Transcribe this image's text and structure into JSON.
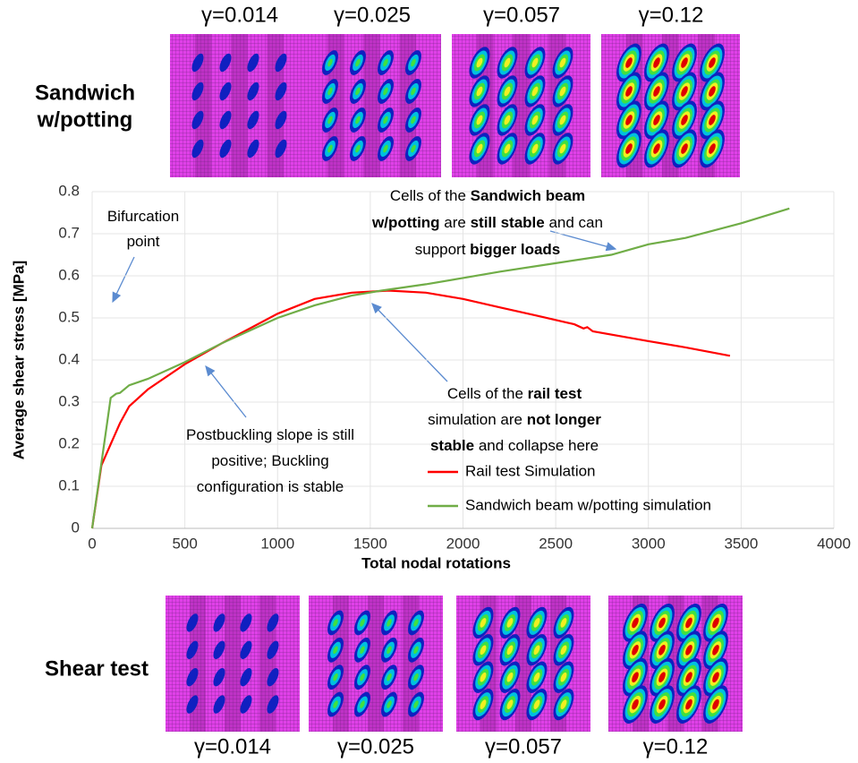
{
  "chart_data": {
    "type": "line",
    "xlabel": "Total nodal rotations",
    "ylabel": "Average shear stress [MPa]",
    "xlim": [
      0,
      4000
    ],
    "xticks": [
      0,
      500,
      1000,
      1500,
      2000,
      2500,
      3000,
      3500,
      4000
    ],
    "ylim": [
      0,
      0.8
    ],
    "yticks": [
      0,
      0.1,
      0.2,
      0.3,
      0.4,
      0.5,
      0.6,
      0.7,
      0.8
    ],
    "grid": true,
    "series": [
      {
        "name": "Rail test Simulation",
        "color": "#ff0000",
        "x": [
          0,
          50,
          100,
          150,
          200,
          300,
          500,
          700,
          1000,
          1200,
          1400,
          1600,
          1800,
          2000,
          2200,
          2400,
          2600,
          2650,
          2670,
          2700,
          3000,
          3200,
          3440
        ],
        "values": [
          0,
          0.15,
          0.2,
          0.25,
          0.29,
          0.33,
          0.39,
          0.44,
          0.51,
          0.545,
          0.56,
          0.565,
          0.56,
          0.545,
          0.525,
          0.505,
          0.485,
          0.475,
          0.478,
          0.468,
          0.445,
          0.43,
          0.41
        ]
      },
      {
        "name": "Sandwich beam w/potting simulation",
        "color": "#70ad47",
        "x": [
          0,
          100,
          130,
          150,
          200,
          300,
          500,
          700,
          1000,
          1200,
          1400,
          1560,
          1800,
          2000,
          2200,
          2500,
          2800,
          3000,
          3200,
          3500,
          3760
        ],
        "values": [
          0,
          0.31,
          0.32,
          0.322,
          0.34,
          0.355,
          0.395,
          0.44,
          0.5,
          0.53,
          0.553,
          0.565,
          0.58,
          0.595,
          0.61,
          0.63,
          0.65,
          0.675,
          0.69,
          0.725,
          0.76
        ]
      }
    ],
    "annotations": [
      {
        "lines": [
          [
            {
              "t": "Bifurcation",
              "b": false
            }
          ],
          [
            {
              "t": "point",
              "b": false
            }
          ]
        ]
      },
      {
        "lines": [
          [
            {
              "t": "Cells of the ",
              "b": false
            },
            {
              "t": "Sandwich beam",
              "b": true
            }
          ],
          [
            {
              "t": "w/potting",
              "b": true
            },
            {
              "t": " are ",
              "b": false
            },
            {
              "t": "still stable",
              "b": true
            },
            {
              "t": " and can",
              "b": false
            }
          ],
          [
            {
              "t": "support ",
              "b": false
            },
            {
              "t": "bigger loads",
              "b": true
            }
          ]
        ]
      },
      {
        "lines": [
          [
            {
              "t": "Cells of the ",
              "b": false
            },
            {
              "t": "rail test",
              "b": true
            }
          ],
          [
            {
              "t": "simulation are ",
              "b": false
            },
            {
              "t": "not longer",
              "b": true
            }
          ],
          [
            {
              "t": "stable",
              "b": true
            },
            {
              "t": " and collapse here",
              "b": false
            }
          ]
        ]
      },
      {
        "lines": [
          [
            {
              "t": "Postbuckling slope is still",
              "b": false
            }
          ],
          [
            {
              "t": "positive; Buckling",
              "b": false
            }
          ],
          [
            {
              "t": "configuration is stable",
              "b": false
            }
          ]
        ]
      }
    ]
  },
  "top_panels": {
    "label": [
      "Sandwich",
      "w/potting"
    ],
    "strains": [
      "γ=0.014",
      "γ=0.025",
      "γ=0.057",
      "γ=0.12"
    ]
  },
  "bottom_panels": {
    "label": [
      "Shear test"
    ],
    "strains": [
      "γ=0.014",
      "γ=0.025",
      "γ=0.057",
      "γ=0.12"
    ]
  }
}
